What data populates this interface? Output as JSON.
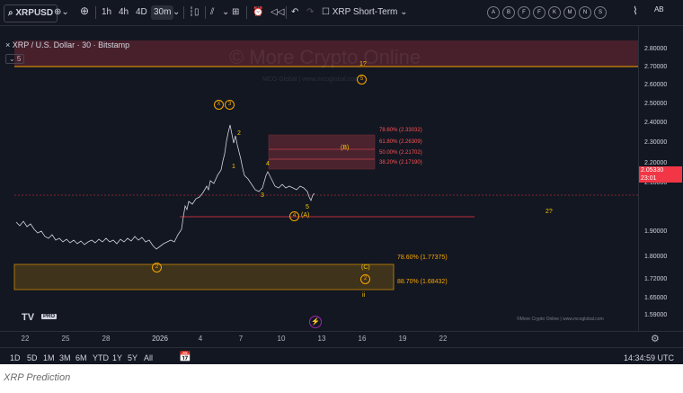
{
  "toolbar": {
    "symbol": "XRPUSD",
    "timeframes": [
      "1h",
      "4h",
      "4D",
      "30m"
    ],
    "active_timeframe": "30m",
    "layout_name": "XRP Short-Term",
    "circle_letters": [
      "A",
      "B",
      "F",
      "F",
      "K",
      "M",
      "N",
      "S"
    ]
  },
  "chart": {
    "title": "× XRP / U.S. Dollar · 30 · Bitstamp",
    "indicator_badge": "⌄ 5",
    "watermark": "© More Crypto Online",
    "watermark_sub": "MCO Global  |  www.mcoglobal.com",
    "current_price": "2.05330",
    "countdown": "23:01",
    "price_axis": [
      "2.80000",
      "2.70000",
      "2.60000",
      "2.50000",
      "2.40000",
      "2.30000",
      "2.20000",
      "2.10000",
      "1.90000",
      "1.80000",
      "1.72000",
      "1.65000",
      "1.59000"
    ],
    "time_axis": [
      "22",
      "25",
      "28",
      "2026",
      "4",
      "7",
      "10",
      "13",
      "16",
      "19",
      "22"
    ],
    "fib_upper": [
      "78.60% (2.33032)",
      "61.80% (2.26309)",
      "50.00% (2.21702)",
      "38.20% (2.17190)"
    ],
    "fib_lower": [
      "78.60% (1.77375)",
      "88.70% (1.68432)"
    ],
    "wave_labels": {
      "top_q": "1?",
      "top_5": "5",
      "x3": "X",
      "x3b": "3",
      "w2": "2",
      "w1": "1",
      "w4": "4",
      "w3": "3",
      "w5": "5",
      "B": "(B)",
      "A": "(A)",
      "circ4": "4",
      "circ2": "2",
      "two_q": "2?",
      "C": "(C)",
      "circ2b": "2",
      "ii": "ii"
    },
    "credit": "©More Crypto Online  |  www.mcoglobal.com",
    "tv_logo": "TV",
    "tv_pro": "PRO"
  },
  "bottombar": {
    "ranges": [
      "1D",
      "5D",
      "1M",
      "3M",
      "6M",
      "YTD",
      "1Y",
      "5Y",
      "All"
    ],
    "clock": "14:34:59 UTC"
  },
  "caption": "XRP Prediction",
  "colors": {
    "bg": "#131722",
    "accent": "#f7a600",
    "fib": "#ff5252",
    "price": "#f23645"
  }
}
